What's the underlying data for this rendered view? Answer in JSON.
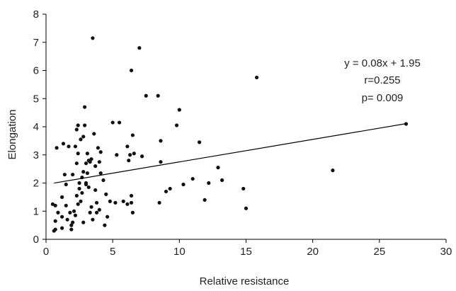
{
  "chart_data": {
    "type": "scatter",
    "title": "",
    "xlabel": "Relative resistance",
    "ylabel": "Elongation",
    "xlim": [
      0,
      30
    ],
    "ylim": [
      0,
      8
    ],
    "xticks": [
      "0",
      "5",
      "10",
      "15",
      "20",
      "25",
      "30"
    ],
    "yticks": [
      "0",
      "1",
      "2",
      "3",
      "4",
      "5",
      "6",
      "7",
      "8"
    ],
    "grid": false,
    "legend": "none",
    "annotations": [
      "y = 0.08x + 1.95",
      "r=0.255",
      "p= 0.009"
    ],
    "trendline": {
      "slope": 0.08,
      "intercept": 1.95,
      "x": [
        0.6,
        27
      ]
    },
    "series": [
      {
        "points": [
          [
            0.5,
            1.25
          ],
          [
            0.6,
            0.3
          ],
          [
            0.7,
            0.35
          ],
          [
            0.7,
            0.65
          ],
          [
            0.7,
            1.2
          ],
          [
            0.8,
            3.25
          ],
          [
            0.9,
            0.95
          ],
          [
            1.2,
            0.4
          ],
          [
            1.2,
            0.8
          ],
          [
            1.2,
            1.5
          ],
          [
            1.3,
            3.4
          ],
          [
            1.4,
            2.3
          ],
          [
            1.5,
            1.2
          ],
          [
            1.5,
            1.95
          ],
          [
            1.6,
            0.7
          ],
          [
            1.7,
            3.3
          ],
          [
            1.8,
            0.95
          ],
          [
            1.9,
            0.35
          ],
          [
            1.9,
            0.5
          ],
          [
            2.0,
            0.6
          ],
          [
            2.0,
            2.3
          ],
          [
            2.1,
            1.0
          ],
          [
            2.2,
            3.3
          ],
          [
            2.2,
            0.85
          ],
          [
            2.3,
            1.55
          ],
          [
            2.3,
            3.9
          ],
          [
            2.3,
            2.7
          ],
          [
            2.4,
            4.05
          ],
          [
            2.4,
            3.05
          ],
          [
            2.4,
            1.25
          ],
          [
            2.5,
            1.8
          ],
          [
            2.5,
            2.0
          ],
          [
            2.6,
            1.35
          ],
          [
            2.6,
            3.55
          ],
          [
            2.7,
            1.65
          ],
          [
            2.7,
            2.2
          ],
          [
            2.8,
            2.4
          ],
          [
            2.8,
            3.65
          ],
          [
            2.8,
            0.6
          ],
          [
            2.9,
            4.7
          ],
          [
            2.9,
            4.05
          ],
          [
            3.0,
            2.0
          ],
          [
            3.0,
            2.7
          ],
          [
            3.0,
            1.95
          ],
          [
            3.1,
            3.05
          ],
          [
            3.1,
            2.35
          ],
          [
            3.2,
            2.8
          ],
          [
            3.2,
            1.85
          ],
          [
            3.3,
            0.95
          ],
          [
            3.3,
            2.75
          ],
          [
            3.4,
            1.15
          ],
          [
            3.4,
            2.85
          ],
          [
            3.5,
            0.7
          ],
          [
            3.5,
            7.15
          ],
          [
            3.6,
            3.75
          ],
          [
            3.7,
            2.6
          ],
          [
            3.7,
            1.75
          ],
          [
            3.8,
            0.95
          ],
          [
            3.8,
            1.3
          ],
          [
            3.9,
            3.25
          ],
          [
            4.0,
            1.05
          ],
          [
            4.0,
            2.75
          ],
          [
            4.1,
            3.1
          ],
          [
            4.1,
            2.35
          ],
          [
            4.3,
            2.1
          ],
          [
            4.4,
            0.5
          ],
          [
            4.5,
            1.6
          ],
          [
            4.6,
            0.8
          ],
          [
            4.8,
            1.35
          ],
          [
            5.0,
            4.15
          ],
          [
            5.2,
            1.3
          ],
          [
            5.3,
            3.0
          ],
          [
            5.5,
            4.15
          ],
          [
            5.8,
            1.35
          ],
          [
            6.1,
            1.25
          ],
          [
            6.1,
            3.3
          ],
          [
            6.2,
            2.8
          ],
          [
            6.3,
            3.0
          ],
          [
            6.4,
            1.3
          ],
          [
            6.4,
            1.55
          ],
          [
            6.4,
            6.0
          ],
          [
            6.5,
            0.95
          ],
          [
            6.5,
            3.7
          ],
          [
            6.6,
            3.05
          ],
          [
            7.0,
            6.8
          ],
          [
            7.2,
            2.95
          ],
          [
            7.5,
            5.1
          ],
          [
            8.4,
            5.1
          ],
          [
            8.5,
            1.3
          ],
          [
            8.6,
            3.5
          ],
          [
            8.6,
            2.75
          ],
          [
            9.0,
            1.7
          ],
          [
            9.3,
            1.8
          ],
          [
            9.8,
            4.05
          ],
          [
            10.0,
            4.6
          ],
          [
            10.3,
            1.95
          ],
          [
            11.0,
            2.15
          ],
          [
            11.5,
            3.45
          ],
          [
            11.9,
            1.4
          ],
          [
            12.2,
            2.0
          ],
          [
            12.9,
            2.55
          ],
          [
            13.2,
            2.1
          ],
          [
            14.8,
            1.8
          ],
          [
            15.0,
            1.1
          ],
          [
            15.8,
            5.75
          ],
          [
            21.5,
            2.45
          ],
          [
            27.0,
            4.1
          ]
        ]
      }
    ]
  }
}
